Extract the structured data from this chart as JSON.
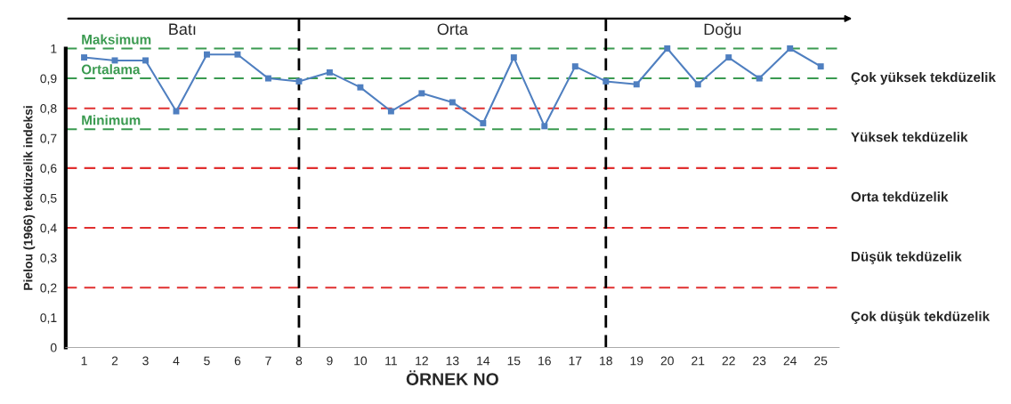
{
  "chart_data": {
    "type": "line",
    "xlabel": "ÖRNEK NO",
    "ylabel": "Pielou (1966) tekdüzelik indeksi",
    "categories": [
      "1",
      "2",
      "3",
      "4",
      "5",
      "6",
      "7",
      "8",
      "9",
      "10",
      "11",
      "12",
      "13",
      "14",
      "15",
      "16",
      "17",
      "18",
      "19",
      "20",
      "21",
      "22",
      "23",
      "24",
      "25"
    ],
    "series": [
      {
        "color": "#4f7fc0",
        "values": [
          0.97,
          0.96,
          0.96,
          0.79,
          0.98,
          0.98,
          0.9,
          0.89,
          0.92,
          0.87,
          0.79,
          0.85,
          0.82,
          0.75,
          0.97,
          0.74,
          0.94,
          0.89,
          0.88,
          1.0,
          0.88,
          0.97,
          0.9,
          1.0,
          0.94
        ]
      }
    ],
    "ylim": [
      0,
      1
    ],
    "yticks": [
      0,
      {
        "value": 0.1,
        "label": "0,1"
      },
      {
        "value": 0.2,
        "label": "0,2"
      },
      {
        "value": 0.3,
        "label": "0,3"
      },
      {
        "value": 0.4,
        "label": "0,4"
      },
      {
        "value": 0.5,
        "label": "0,5"
      },
      {
        "value": 0.6,
        "label": "0,6"
      },
      {
        "value": 0.7,
        "label": "0,7"
      },
      {
        "value": 0.8,
        "label": "0,8"
      },
      {
        "value": 0.9,
        "label": "0,9"
      },
      1
    ],
    "ref_lines": [
      {
        "axis": "y",
        "value": 0.2,
        "color": "#e03030",
        "line_style": "dashed"
      },
      {
        "axis": "y",
        "value": 0.4,
        "color": "#e03030",
        "line_style": "dashed"
      },
      {
        "axis": "y",
        "value": 0.6,
        "color": "#e03030",
        "line_style": "dashed"
      },
      {
        "axis": "y",
        "value": 0.8,
        "color": "#e03030",
        "line_style": "dashed"
      },
      {
        "axis": "y",
        "value": 1,
        "color": "#3a9a50",
        "line_style": "dashed",
        "label": "Maksimum"
      },
      {
        "axis": "y",
        "value": 0.9,
        "color": "#3a9a50",
        "line_style": "dashed",
        "label": "Ortalama"
      },
      {
        "axis": "y",
        "value": 0.73,
        "color": "#3a9a50",
        "line_style": "dashed",
        "label": "Minimum"
      },
      {
        "axis": "x",
        "value": "8",
        "color": "#000000",
        "line_style": "dashed"
      },
      {
        "axis": "x",
        "value": "18",
        "color": "#000000",
        "line_style": "dashed"
      }
    ],
    "annotations": [
      "Batı",
      "Orta",
      "Doğu",
      "Çok yüksek tekdüzelik",
      "Yüksek tekdüzelik",
      "Orta tekdüzelik",
      "Düşük tekdüzelik",
      "Çok düşük tekdüzelik"
    ],
    "grid": false,
    "marker": "square",
    "line_style": "solid"
  }
}
